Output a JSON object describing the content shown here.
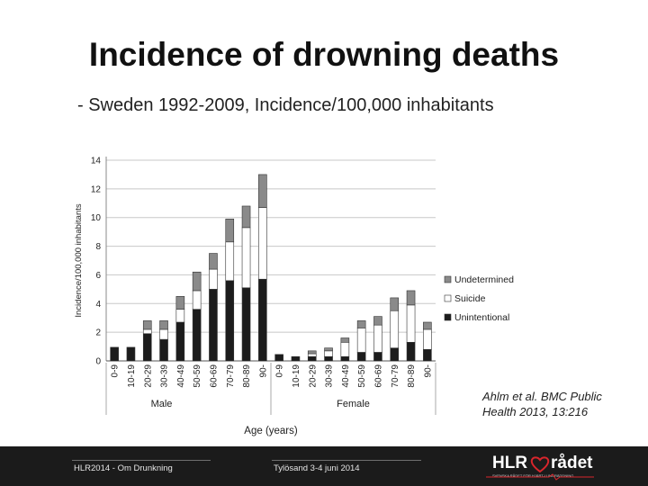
{
  "slide": {
    "title": "Incidence of drowning deaths",
    "subtitle": "- Sweden 1992-2009, Incidence/100,000 inhabitants",
    "citation_line1": "Ahlm et al. BMC Public",
    "citation_line2": "Health 2013, 13:216"
  },
  "footer": {
    "left_text": "HLR2014 - Om Drunkning",
    "center_text": "Tylösand 3-4 juni 2014",
    "logo_left": "HLR",
    "logo_right": "rådet",
    "logo_tagline": "SVENSKA RÅDET FÖR HJÄRT-LUNGRÄDDNING"
  },
  "colors": {
    "unintentional": "#1c1c1c",
    "suicide": "#ffffff",
    "undetermined": "#8a8a8a",
    "logo_heart": "#d9262c"
  },
  "chart_data": {
    "type": "bar",
    "stacked": true,
    "title": "",
    "xlabel": "Age (years)",
    "ylabel": "Incidence/100,000 inhabitants",
    "ylim": [
      0,
      14
    ],
    "yticks": [
      0,
      2,
      4,
      6,
      8,
      10,
      12,
      14
    ],
    "grid": true,
    "legend_position": "right",
    "groups": [
      {
        "name": "Male",
        "categories": [
          "0-9",
          "10-19",
          "20-29",
          "30-39",
          "40-49",
          "50-59",
          "60-69",
          "70-79",
          "80-89",
          "90-"
        ]
      },
      {
        "name": "Female",
        "categories": [
          "0-9",
          "10-19",
          "20-29",
          "30-39",
          "40-49",
          "50-59",
          "60-69",
          "70-79",
          "80-89",
          "90-"
        ]
      }
    ],
    "categories": [
      "0-9",
      "10-19",
      "20-29",
      "30-39",
      "40-49",
      "50-59",
      "60-69",
      "70-79",
      "80-89",
      "90-",
      "0-9",
      "10-19",
      "20-29",
      "30-39",
      "40-49",
      "50-59",
      "60-69",
      "70-79",
      "80-89",
      "90-"
    ],
    "series": [
      {
        "name": "Unintentional",
        "values": [
          0.95,
          0.95,
          1.9,
          1.5,
          2.7,
          3.6,
          5.0,
          5.6,
          5.1,
          5.7,
          0.45,
          0.3,
          0.3,
          0.3,
          0.3,
          0.6,
          0.6,
          0.9,
          1.3,
          0.8
        ]
      },
      {
        "name": "Suicide",
        "values": [
          0.0,
          0.0,
          0.3,
          0.7,
          0.9,
          1.3,
          1.4,
          2.7,
          4.2,
          5.0,
          0.0,
          0.0,
          0.2,
          0.4,
          1.0,
          1.7,
          1.9,
          2.6,
          2.6,
          1.4
        ]
      },
      {
        "name": "Undetermined",
        "values": [
          0.0,
          0.0,
          0.6,
          0.6,
          0.9,
          1.3,
          1.1,
          1.6,
          1.5,
          2.3,
          0.0,
          0.0,
          0.2,
          0.2,
          0.3,
          0.5,
          0.6,
          0.9,
          1.0,
          0.5
        ]
      }
    ]
  }
}
